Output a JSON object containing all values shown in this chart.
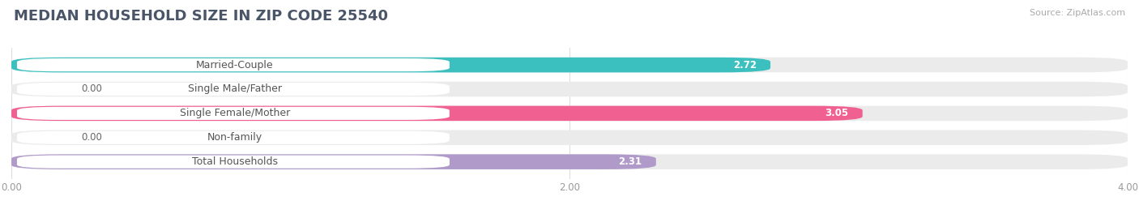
{
  "title": "MEDIAN HOUSEHOLD SIZE IN ZIP CODE 25540",
  "source": "Source: ZipAtlas.com",
  "categories": [
    "Married-Couple",
    "Single Male/Father",
    "Single Female/Mother",
    "Non-family",
    "Total Households"
  ],
  "values": [
    2.72,
    0.0,
    3.05,
    0.0,
    2.31
  ],
  "bar_colors": [
    "#3bbfbf",
    "#a8bedd",
    "#f06090",
    "#f5c898",
    "#b09aca"
  ],
  "xlim": [
    0,
    4.0
  ],
  "xticks": [
    0.0,
    2.0,
    4.0
  ],
  "xtick_labels": [
    "0.00",
    "2.00",
    "4.00"
  ],
  "background_color": "#ffffff",
  "bar_background_color": "#ebebeb",
  "title_fontsize": 13,
  "label_fontsize": 9,
  "value_fontsize": 8.5,
  "figsize": [
    14.06,
    2.69
  ],
  "dpi": 100
}
